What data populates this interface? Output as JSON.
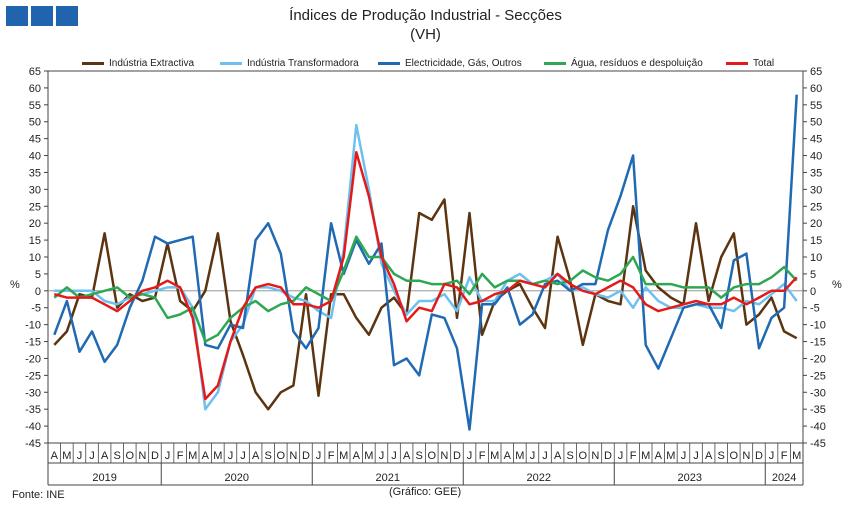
{
  "header": {
    "title": "Índices de Produção Industrial - Secções",
    "subtitle": "(VH)"
  },
  "footer": {
    "source": "Fonte: INE",
    "credit": "(Gráfico: GEE)"
  },
  "colors": {
    "logo": "#1f64ad"
  },
  "chart_data": {
    "type": "line",
    "title": "Índices de Produção Industrial - Secções",
    "subtitle": "(VH)",
    "ylabel_left": "%",
    "ylabel_right": "%",
    "ylim": [
      -45,
      65
    ],
    "ytick_step": 5,
    "grid": false,
    "legend_position": "top",
    "x": [
      "A",
      "M",
      "J",
      "J",
      "A",
      "S",
      "O",
      "N",
      "D",
      "J",
      "F",
      "M",
      "A",
      "M",
      "J",
      "J",
      "A",
      "S",
      "O",
      "N",
      "D",
      "J",
      "F",
      "M",
      "A",
      "M",
      "J",
      "J",
      "A",
      "S",
      "O",
      "N",
      "D",
      "J",
      "F",
      "M",
      "A",
      "M",
      "J",
      "J",
      "A",
      "S",
      "O",
      "N",
      "D",
      "J",
      "F",
      "M",
      "A",
      "M",
      "J",
      "J",
      "A",
      "S",
      "O",
      "N",
      "D",
      "J",
      "F",
      "M"
    ],
    "year_groups": [
      {
        "label": "2019",
        "count": 9
      },
      {
        "label": "2020",
        "count": 12
      },
      {
        "label": "2021",
        "count": 12
      },
      {
        "label": "2022",
        "count": 12
      },
      {
        "label": "2023",
        "count": 12
      },
      {
        "label": "2024",
        "count": 3
      }
    ],
    "series": [
      {
        "name": "Indústria Extractiva",
        "color": "#5c3410",
        "values": [
          -16,
          -12,
          -1,
          -2,
          17,
          -5,
          -1,
          -3,
          -2,
          14,
          -3,
          -6,
          0,
          17,
          -9,
          -19,
          -30,
          -35,
          -30,
          -28,
          -1,
          -31,
          -1,
          -1,
          -8,
          -13,
          -5,
          -2,
          -7,
          23,
          21,
          27,
          -8,
          23,
          -13,
          -3,
          0,
          2,
          -5,
          -11,
          16,
          3,
          -16,
          -1,
          -3,
          -4,
          25,
          6,
          1,
          -2,
          -4,
          20,
          -3,
          10,
          17,
          -10,
          -7,
          -2,
          -12,
          -14
        ]
      },
      {
        "name": "Indústria Transformadora",
        "color": "#6ec1ee",
        "values": [
          0,
          0,
          0,
          0,
          -3,
          -4,
          -2,
          -1,
          0,
          1,
          1,
          -5,
          -35,
          -30,
          -15,
          -10,
          1,
          1,
          0,
          -2,
          -3,
          -6,
          -8,
          12,
          49,
          30,
          8,
          0,
          -7,
          -3,
          -3,
          -1,
          -6,
          4,
          -3,
          -3,
          3,
          5,
          2,
          3,
          5,
          0,
          1,
          -1,
          -2,
          0,
          -5,
          1,
          -3,
          -5,
          -5,
          -4,
          -5,
          -5,
          -6,
          -3,
          -4,
          -1,
          2,
          -3
        ]
      },
      {
        "name": "Electricidade, Gás, Outros",
        "color": "#1f6ab3",
        "values": [
          -13,
          -3,
          -18,
          -12,
          -21,
          -16,
          -5,
          3,
          16,
          14,
          15,
          16,
          -16,
          -17,
          -10,
          -11,
          15,
          20,
          11,
          -12,
          -17,
          -11,
          20,
          5,
          15,
          8,
          14,
          -22,
          -20,
          -25,
          -7,
          -8,
          -17,
          -41,
          -4,
          -4,
          1,
          -10,
          -7,
          2,
          3,
          0,
          2,
          2,
          18,
          28,
          40,
          -16,
          -23,
          -14,
          -5,
          -4,
          -4,
          -11,
          9,
          11,
          -17,
          -8,
          -5,
          58
        ]
      },
      {
        "name": "Água, resíduos e despoluição",
        "color": "#2ea752",
        "values": [
          -2,
          1,
          -2,
          -1,
          0,
          1,
          -2,
          -1,
          -2,
          -8,
          -7,
          -5,
          -15,
          -13,
          -8,
          -5,
          -3,
          -6,
          -4,
          -3,
          1,
          -1,
          -3,
          6,
          16,
          10,
          10,
          5,
          3,
          3,
          2,
          2,
          3,
          -1,
          5,
          1,
          3,
          3,
          2,
          3,
          2,
          3,
          6,
          4,
          3,
          5,
          10,
          2,
          2,
          2,
          1,
          1,
          1,
          -2,
          1,
          2,
          2,
          4,
          7,
          3
        ]
      },
      {
        "name": "Total",
        "color": "#e41a1a",
        "values": [
          -1,
          -2,
          -2,
          -2,
          -4,
          -6,
          -3,
          0,
          1,
          3,
          1,
          -8,
          -32,
          -28,
          -15,
          -5,
          1,
          2,
          1,
          -4,
          -4,
          -5,
          -3,
          10,
          41,
          28,
          10,
          2,
          -9,
          -5,
          -6,
          2,
          1,
          -4,
          -3,
          -1,
          0,
          3,
          2,
          1,
          5,
          2,
          0,
          -1,
          1,
          3,
          1,
          -4,
          -6,
          -5,
          -4,
          -3,
          -4,
          -4,
          -2,
          -4,
          -2,
          0,
          0,
          4
        ]
      }
    ]
  }
}
